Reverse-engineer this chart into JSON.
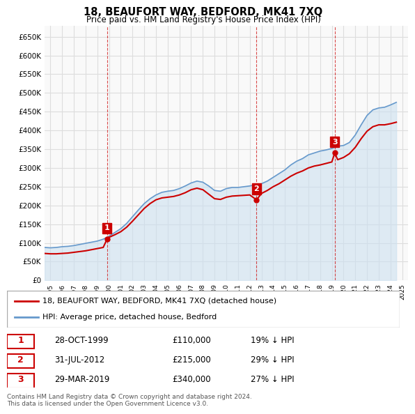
{
  "title": "18, BEAUFORT WAY, BEDFORD, MK41 7XQ",
  "subtitle": "Price paid vs. HM Land Registry's House Price Index (HPI)",
  "title_fontsize": 11,
  "subtitle_fontsize": 9,
  "sales": [
    {
      "date_num": 1999.83,
      "price": 110000,
      "label": "1"
    },
    {
      "date_num": 2012.58,
      "price": 215000,
      "label": "2"
    },
    {
      "date_num": 2019.25,
      "price": 340000,
      "label": "3"
    }
  ],
  "sale_dates_str": [
    "28-OCT-1999",
    "31-JUL-2012",
    "29-MAR-2019"
  ],
  "sale_prices_str": [
    "£110,000",
    "£215,000",
    "£340,000"
  ],
  "sale_hpi_str": [
    "19% ↓ HPI",
    "29% ↓ HPI",
    "27% ↓ HPI"
  ],
  "legend_line1": "18, BEAUFORT WAY, BEDFORD, MK41 7XQ (detached house)",
  "legend_line2": "HPI: Average price, detached house, Bedford",
  "footnote": "Contains HM Land Registry data © Crown copyright and database right 2024.\nThis data is licensed under the Open Government Licence v3.0.",
  "line_color_red": "#cc0000",
  "line_color_blue": "#6699cc",
  "fill_color_blue": "#cce0f0",
  "grid_color": "#dddddd",
  "background_plot": "#f9f9f9",
  "ylim": [
    0,
    680000
  ],
  "yticks": [
    0,
    50000,
    100000,
    150000,
    200000,
    250000,
    300000,
    350000,
    400000,
    450000,
    500000,
    550000,
    600000,
    650000
  ],
  "xlim": [
    1994.5,
    2025.5
  ],
  "hpi_data": {
    "years": [
      1994.5,
      1995.0,
      1995.5,
      1996.0,
      1996.5,
      1997.0,
      1997.5,
      1998.0,
      1998.5,
      1999.0,
      1999.5,
      2000.0,
      2000.5,
      2001.0,
      2001.5,
      2002.0,
      2002.5,
      2003.0,
      2003.5,
      2004.0,
      2004.5,
      2005.0,
      2005.5,
      2006.0,
      2006.5,
      2007.0,
      2007.5,
      2008.0,
      2008.5,
      2009.0,
      2009.5,
      2010.0,
      2010.5,
      2011.0,
      2011.5,
      2012.0,
      2012.5,
      2013.0,
      2013.5,
      2014.0,
      2014.5,
      2015.0,
      2015.5,
      2016.0,
      2016.5,
      2017.0,
      2017.5,
      2018.0,
      2018.5,
      2019.0,
      2019.5,
      2020.0,
      2020.5,
      2021.0,
      2021.5,
      2022.0,
      2022.5,
      2023.0,
      2023.5,
      2024.0,
      2024.5
    ],
    "values": [
      88000,
      87000,
      88000,
      90000,
      91000,
      93000,
      96000,
      99000,
      102000,
      105000,
      110000,
      118000,
      128000,
      138000,
      152000,
      170000,
      188000,
      205000,
      218000,
      228000,
      235000,
      238000,
      240000,
      245000,
      252000,
      260000,
      265000,
      262000,
      252000,
      240000,
      238000,
      245000,
      248000,
      248000,
      250000,
      252000,
      255000,
      258000,
      265000,
      275000,
      285000,
      295000,
      308000,
      318000,
      325000,
      335000,
      340000,
      345000,
      348000,
      352000,
      358000,
      360000,
      368000,
      388000,
      415000,
      440000,
      455000,
      460000,
      462000,
      468000,
      475000
    ]
  },
  "price_data": {
    "years": [
      1994.5,
      1995.0,
      1995.5,
      1996.0,
      1996.5,
      1997.0,
      1997.5,
      1998.0,
      1998.5,
      1999.0,
      1999.5,
      1999.83,
      2000.0,
      2000.5,
      2001.0,
      2001.5,
      2002.0,
      2002.5,
      2003.0,
      2003.5,
      2004.0,
      2004.5,
      2005.0,
      2005.5,
      2006.0,
      2006.5,
      2007.0,
      2007.5,
      2008.0,
      2008.5,
      2009.0,
      2009.5,
      2010.0,
      2010.5,
      2011.0,
      2011.5,
      2012.0,
      2012.58,
      2013.0,
      2013.5,
      2014.0,
      2014.5,
      2015.0,
      2015.5,
      2016.0,
      2016.5,
      2017.0,
      2017.5,
      2018.0,
      2018.5,
      2019.0,
      2019.25,
      2019.5,
      2020.0,
      2020.5,
      2021.0,
      2021.5,
      2022.0,
      2022.5,
      2023.0,
      2023.5,
      2024.0,
      2024.5
    ],
    "values": [
      72000,
      71000,
      71000,
      72000,
      73000,
      75000,
      77000,
      79000,
      82000,
      85000,
      88000,
      110000,
      115000,
      122000,
      130000,
      142000,
      158000,
      175000,
      192000,
      205000,
      215000,
      220000,
      222000,
      224000,
      228000,
      234000,
      242000,
      246000,
      242000,
      230000,
      218000,
      216000,
      222000,
      225000,
      226000,
      227000,
      228000,
      215000,
      232000,
      240000,
      250000,
      258000,
      268000,
      278000,
      286000,
      292000,
      300000,
      305000,
      308000,
      312000,
      316000,
      340000,
      322000,
      328000,
      338000,
      355000,
      378000,
      398000,
      410000,
      415000,
      415000,
      418000,
      422000
    ]
  }
}
